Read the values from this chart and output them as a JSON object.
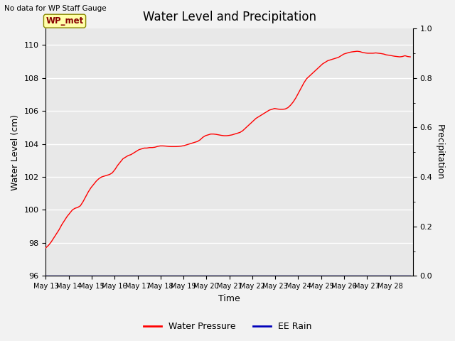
{
  "title": "Water Level and Precipitation",
  "no_data_label": "No data for WP Staff Gauge",
  "wp_met_label": "WP_met",
  "ylabel_left": "Water Level (cm)",
  "ylabel_right": "Precipitation",
  "xlabel": "Time",
  "ylim_left": [
    96,
    111
  ],
  "ylim_right": [
    0.0,
    1.0
  ],
  "yticks_left": [
    96,
    98,
    100,
    102,
    104,
    106,
    108,
    110
  ],
  "yticks_right": [
    0.0,
    0.2,
    0.4,
    0.6,
    0.8,
    1.0
  ],
  "water_pressure_color": "#ff0000",
  "ee_rain_color": "#0000bb",
  "legend_wp_label": "Water Pressure",
  "legend_rain_label": "EE Rain",
  "plot_bg_color": "#e8e8e8",
  "fig_bg_color": "#f2f2f2",
  "grid_color": "#ffffff",
  "wp_met_box_color": "#ffffaa",
  "wp_met_box_edge": "#888800",
  "wp_met_text_color": "#880000",
  "water_levels": [
    97.7,
    97.85,
    98.05,
    98.3,
    98.55,
    98.8,
    99.1,
    99.35,
    99.6,
    99.8,
    100.0,
    100.1,
    100.15,
    100.25,
    100.5,
    100.8,
    101.1,
    101.35,
    101.55,
    101.75,
    101.9,
    102.0,
    102.05,
    102.1,
    102.15,
    102.25,
    102.45,
    102.7,
    102.9,
    103.1,
    103.2,
    103.3,
    103.35,
    103.45,
    103.55,
    103.65,
    103.7,
    103.75,
    103.75,
    103.78,
    103.78,
    103.8,
    103.85,
    103.88,
    103.88,
    103.87,
    103.85,
    103.84,
    103.84,
    103.84,
    103.85,
    103.87,
    103.9,
    103.95,
    104.0,
    104.05,
    104.1,
    104.15,
    104.25,
    104.4,
    104.5,
    104.55,
    104.6,
    104.6,
    104.58,
    104.55,
    104.52,
    104.5,
    104.5,
    104.52,
    104.55,
    104.6,
    104.65,
    104.7,
    104.8,
    104.95,
    105.1,
    105.25,
    105.4,
    105.55,
    105.65,
    105.75,
    105.85,
    105.95,
    106.05,
    106.1,
    106.15,
    106.12,
    106.1,
    106.1,
    106.12,
    106.2,
    106.35,
    106.55,
    106.8,
    107.1,
    107.4,
    107.7,
    107.95,
    108.1,
    108.25,
    108.4,
    108.55,
    108.7,
    108.85,
    108.95,
    109.05,
    109.1,
    109.15,
    109.2,
    109.25,
    109.35,
    109.45,
    109.5,
    109.55,
    109.58,
    109.6,
    109.62,
    109.6,
    109.55,
    109.52,
    109.5,
    109.5,
    109.5,
    109.52,
    109.5,
    109.48,
    109.45,
    109.4,
    109.38,
    109.35,
    109.32,
    109.3,
    109.28,
    109.3,
    109.35,
    109.3,
    109.28
  ],
  "n_days": 16
}
